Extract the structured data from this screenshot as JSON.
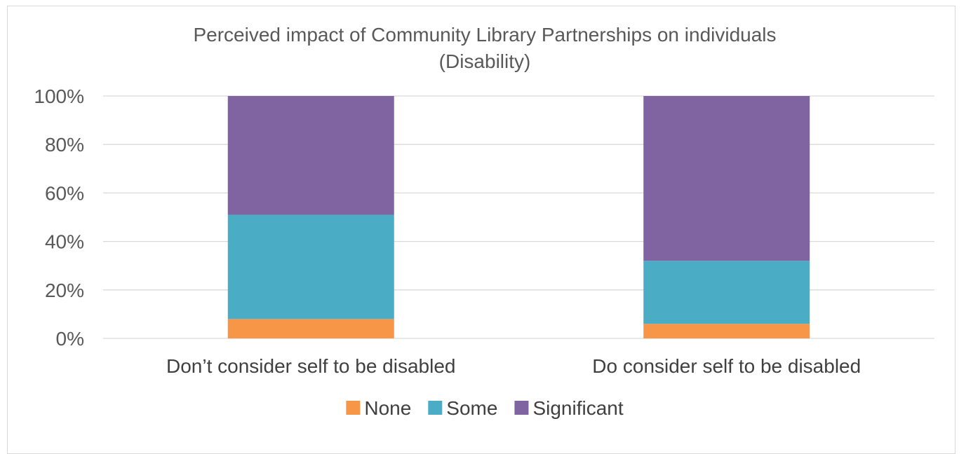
{
  "chart_data": {
    "type": "bar",
    "stacked": true,
    "title": "Perceived impact of Community Library Partnerships on individuals (Disability)",
    "title_lines": [
      "Perceived impact of Community Library Partnerships on individuals",
      "(Disability)"
    ],
    "categories": [
      "Don’t consider self to be disabled",
      "Do consider self to be disabled"
    ],
    "series": [
      {
        "name": "None",
        "color": "#F79646",
        "values": [
          8,
          6
        ]
      },
      {
        "name": "Some",
        "color": "#4BACC6",
        "values": [
          43,
          26
        ]
      },
      {
        "name": "Significant",
        "color": "#8064A2",
        "values": [
          49,
          68
        ]
      }
    ],
    "ylim": [
      0,
      100
    ],
    "yticks": [
      "0%",
      "20%",
      "40%",
      "60%",
      "80%",
      "100%"
    ],
    "grid": true,
    "legend_position": "bottom"
  }
}
